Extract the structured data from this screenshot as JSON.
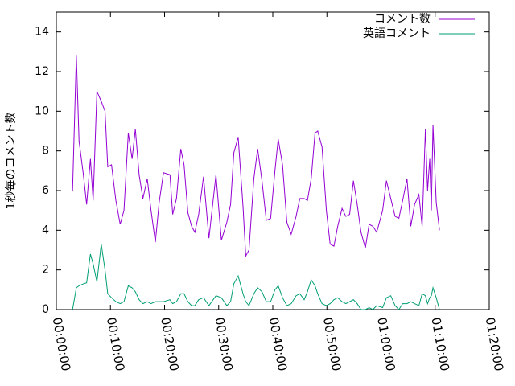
{
  "chart_data": {
    "type": "line",
    "y_label": "1秒毎のコメント数",
    "x": [
      180,
      222,
      252,
      300,
      336,
      378,
      408,
      450,
      498,
      540,
      570,
      612,
      660,
      708,
      750,
      798,
      840,
      876,
      918,
      960,
      1008,
      1050,
      1098,
      1140,
      1188,
      1260,
      1290,
      1332,
      1380,
      1416,
      1458,
      1500,
      1536,
      1578,
      1632,
      1692,
      1770,
      1830,
      1890,
      1932,
      1968,
      2016,
      2070,
      2100,
      2136,
      2190,
      2232,
      2280,
      2328,
      2376,
      2424,
      2460,
      2508,
      2556,
      2604,
      2658,
      2700,
      2748,
      2784,
      2826,
      2868,
      2898,
      2946,
      2994,
      3036,
      3078,
      3120,
      3168,
      3210,
      3252,
      3294,
      3336,
      3378,
      3426,
      3468,
      3510,
      3552,
      3618,
      3660,
      3708,
      3756,
      3798,
      3840,
      3888,
      3930,
      3972,
      4020,
      4056,
      4092,
      4116,
      4140,
      4158,
      4176,
      4212,
      4248
    ],
    "series": [
      {
        "name": "コメント数",
        "color": "#9400d3",
        "values": [
          6.0,
          12.8,
          8.5,
          6.8,
          5.3,
          7.6,
          5.5,
          11.0,
          10.5,
          10.0,
          7.2,
          7.3,
          5.5,
          4.3,
          5.0,
          8.9,
          7.6,
          9.1,
          6.8,
          5.6,
          6.6,
          5.0,
          3.4,
          5.4,
          6.9,
          6.8,
          4.8,
          5.6,
          8.1,
          7.3,
          4.9,
          4.2,
          3.9,
          4.8,
          6.7,
          3.6,
          6.8,
          3.5,
          4.4,
          5.3,
          7.9,
          8.7,
          5.2,
          2.7,
          3.0,
          6.6,
          8.1,
          6.5,
          4.5,
          4.6,
          7.0,
          8.6,
          7.3,
          4.4,
          3.8,
          4.7,
          5.6,
          5.6,
          5.5,
          6.6,
          8.9,
          9.0,
          8.2,
          5.0,
          3.3,
          3.2,
          4.2,
          5.1,
          4.7,
          4.8,
          6.5,
          5.3,
          3.9,
          3.1,
          4.3,
          4.2,
          3.9,
          5.0,
          6.5,
          5.6,
          4.7,
          4.6,
          5.5,
          6.6,
          4.2,
          5.3,
          5.8,
          4.2,
          9.1,
          6.0,
          7.6,
          5.0,
          9.3,
          5.4,
          4.0
        ]
      },
      {
        "name": "英語コメント",
        "color": "#009e73",
        "values": [
          0.0,
          1.1,
          1.2,
          1.3,
          1.35,
          2.8,
          2.3,
          1.4,
          3.3,
          2.0,
          0.8,
          0.6,
          0.4,
          0.3,
          0.4,
          1.2,
          1.1,
          0.9,
          0.5,
          0.3,
          0.4,
          0.3,
          0.4,
          0.4,
          0.4,
          0.5,
          0.3,
          0.4,
          0.8,
          0.8,
          0.4,
          0.2,
          0.2,
          0.5,
          0.6,
          0.2,
          0.7,
          0.6,
          0.2,
          0.4,
          1.3,
          1.7,
          0.8,
          0.4,
          0.2,
          0.8,
          1.1,
          0.9,
          0.4,
          0.4,
          1.0,
          1.2,
          0.6,
          0.2,
          0.3,
          0.7,
          0.8,
          0.5,
          0.9,
          1.5,
          1.2,
          0.8,
          0.3,
          0.2,
          0.3,
          0.5,
          0.6,
          0.4,
          0.3,
          0.4,
          0.5,
          0.3,
          0.0,
          0.0,
          0.1,
          0.0,
          0.2,
          0.1,
          0.6,
          0.7,
          0.2,
          0.0,
          0.3,
          0.3,
          0.4,
          0.3,
          0.2,
          0.8,
          0.7,
          0.3,
          0.6,
          0.7,
          1.1,
          0.6,
          0.0
        ]
      }
    ],
    "xlim": [
      0,
      4800
    ],
    "xticks": [
      {
        "value": 0,
        "label": "00:00:00"
      },
      {
        "value": 600,
        "label": "00:10:00"
      },
      {
        "value": 1200,
        "label": "00:20:00"
      },
      {
        "value": 1800,
        "label": "00:30:00"
      },
      {
        "value": 2400,
        "label": "00:40:00"
      },
      {
        "value": 3000,
        "label": "00:50:00"
      },
      {
        "value": 3600,
        "label": "01:00:00"
      },
      {
        "value": 4200,
        "label": "01:10:00"
      },
      {
        "value": 4800,
        "label": "01:20:00"
      }
    ],
    "ylim": [
      0,
      15
    ],
    "yticks": [
      0,
      2,
      4,
      6,
      8,
      10,
      12,
      14
    ],
    "grid": false,
    "legend": "top-right"
  }
}
